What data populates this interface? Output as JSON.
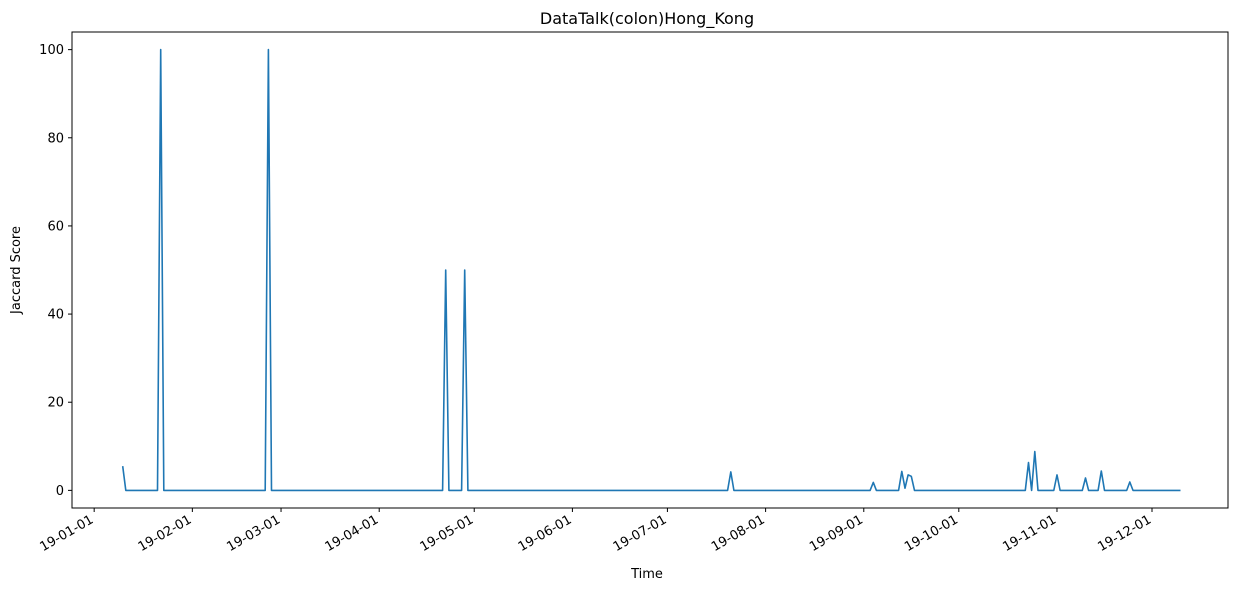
{
  "chart_data": {
    "type": "line",
    "title": "DataTalk(colon)Hong_Kong",
    "xlabel": "Time",
    "ylabel": "Jaccard Score",
    "ylim": [
      -4,
      104
    ],
    "xlim": [
      "2018-12-25",
      "2019-12-25"
    ],
    "grid": false,
    "line_color": "#1f77b4",
    "yticks": [
      0,
      20,
      40,
      60,
      80,
      100
    ],
    "xticks": [
      {
        "date": "2019-01-01",
        "label": "19-01-01"
      },
      {
        "date": "2019-02-01",
        "label": "19-02-01"
      },
      {
        "date": "2019-03-01",
        "label": "19-03-01"
      },
      {
        "date": "2019-04-01",
        "label": "19-04-01"
      },
      {
        "date": "2019-05-01",
        "label": "19-05-01"
      },
      {
        "date": "2019-06-01",
        "label": "19-06-01"
      },
      {
        "date": "2019-07-01",
        "label": "19-07-01"
      },
      {
        "date": "2019-08-01",
        "label": "19-08-01"
      },
      {
        "date": "2019-09-01",
        "label": "19-09-01"
      },
      {
        "date": "2019-10-01",
        "label": "19-10-01"
      },
      {
        "date": "2019-11-01",
        "label": "19-11-01"
      },
      {
        "date": "2019-12-01",
        "label": "19-12-01"
      }
    ],
    "series": [
      {
        "x": [
          "2019-01-10",
          "2019-01-11",
          "2019-01-21",
          "2019-01-22",
          "2019-01-23",
          "2019-02-24",
          "2019-02-25",
          "2019-02-26",
          "2019-04-21",
          "2019-04-22",
          "2019-04-23",
          "2019-04-27",
          "2019-04-28",
          "2019-04-29",
          "2019-07-20",
          "2019-07-21",
          "2019-07-22",
          "2019-09-03",
          "2019-09-04",
          "2019-09-05",
          "2019-09-12",
          "2019-09-13",
          "2019-09-14",
          "2019-09-15",
          "2019-09-16",
          "2019-09-17",
          "2019-10-22",
          "2019-10-23",
          "2019-10-24",
          "2019-10-25",
          "2019-10-26",
          "2019-10-31",
          "2019-11-01",
          "2019-11-02",
          "2019-11-09",
          "2019-11-10",
          "2019-11-11",
          "2019-11-14",
          "2019-11-15",
          "2019-11-16",
          "2019-11-23",
          "2019-11-24",
          "2019-11-25",
          "2019-12-10"
        ],
        "y": [
          5.5,
          0,
          0,
          100,
          0,
          0,
          100,
          0,
          0,
          50,
          0,
          0,
          50,
          0,
          0,
          4.2,
          0,
          0,
          1.8,
          0,
          0,
          4.3,
          0.5,
          3.5,
          3.2,
          0,
          0,
          6.3,
          0,
          8.8,
          0,
          0,
          3.5,
          0,
          0,
          2.8,
          0,
          0,
          4.4,
          0,
          0,
          1.9,
          0,
          0
        ]
      }
    ]
  }
}
